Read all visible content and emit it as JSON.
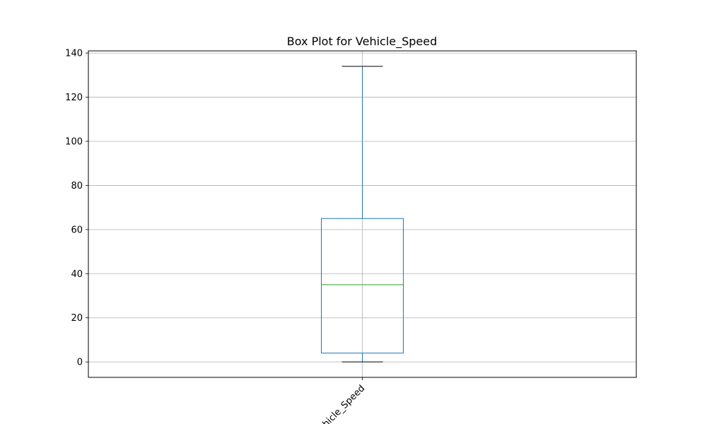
{
  "chart_data": {
    "type": "box",
    "title": "Box Plot for Vehicle_Speed",
    "xlabel": "",
    "ylabel": "",
    "categories": [
      "Vehicle_Speed"
    ],
    "boxes": [
      {
        "name": "Vehicle_Speed",
        "whisker_low": 0,
        "q1": 4,
        "median": 35,
        "q3": 65,
        "whisker_high": 134
      }
    ],
    "ylim": [
      -7,
      141
    ],
    "yticks": [
      0,
      20,
      40,
      60,
      80,
      100,
      120,
      140
    ],
    "grid": true,
    "colors": {
      "box": "#1f77b4",
      "median": "#2ca02c",
      "whisker_cap": "#000000",
      "grid": "#b0b0b0",
      "axes": "#000000"
    }
  }
}
